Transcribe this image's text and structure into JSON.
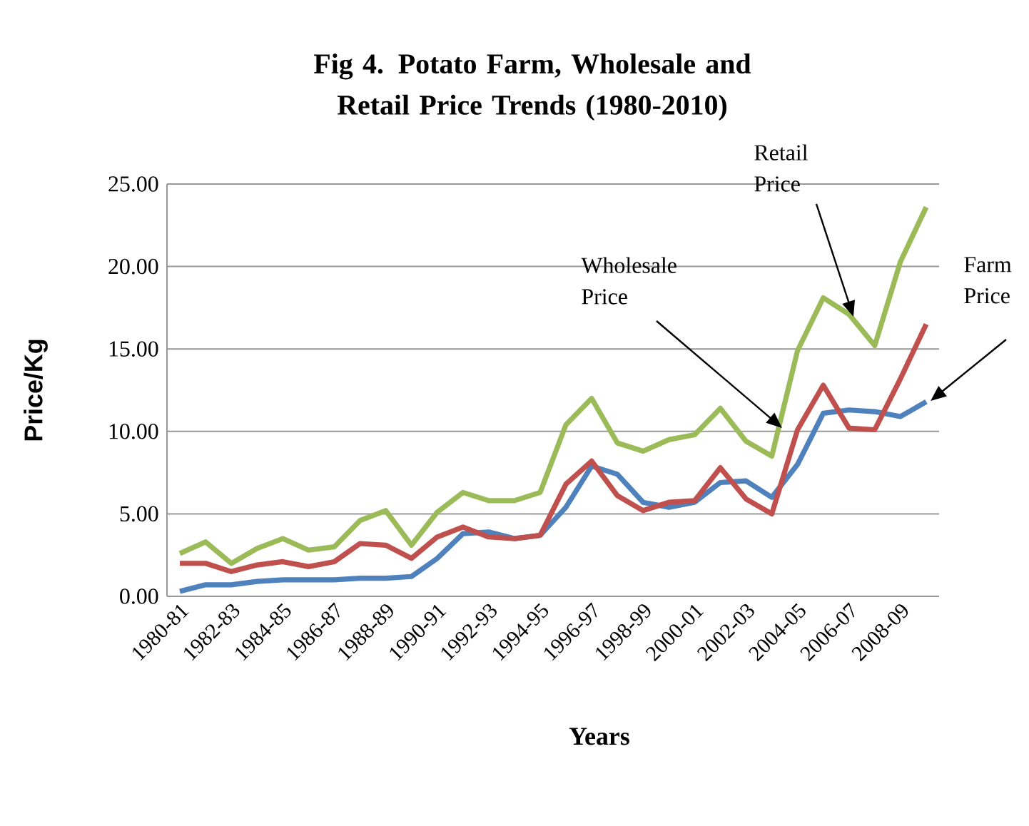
{
  "chart_data": {
    "type": "line",
    "title": "Fig 4. Potato Farm, Wholesale and Retail Price Trends (1980-2010)",
    "xlabel": "Years",
    "ylabel": "Price/Kg",
    "categories": [
      "1980-81",
      null,
      "1982-83",
      null,
      "1984-85",
      null,
      "1986-87",
      null,
      "1988-89",
      null,
      "1990-91",
      null,
      "1992-93",
      null,
      "1994-95",
      null,
      "1996-97",
      null,
      "1998-99",
      null,
      "2000-01",
      null,
      "2002-03",
      null,
      "2004-05",
      null,
      "2006-07",
      null,
      "2008-09",
      null
    ],
    "series": [
      {
        "color": "#4f81bd",
        "values": [
          0.3,
          0.7,
          0.7,
          0.9,
          1.0,
          1.0,
          1.0,
          1.1,
          1.1,
          1.2,
          2.3,
          3.8,
          3.9,
          3.5,
          3.7,
          5.4,
          7.9,
          7.4,
          5.7,
          5.4,
          5.7,
          6.9,
          7.0,
          6.0,
          8.0,
          11.1,
          11.3,
          11.2,
          10.9,
          11.8
        ]
      },
      {
        "color": "#c0504d",
        "values": [
          2.0,
          2.0,
          1.5,
          1.9,
          2.1,
          1.8,
          2.1,
          3.2,
          3.1,
          2.3,
          3.6,
          4.2,
          3.6,
          3.5,
          3.7,
          6.8,
          8.2,
          6.1,
          5.2,
          5.7,
          5.8,
          7.8,
          5.9,
          5.0,
          10.1,
          12.8,
          10.2,
          10.1,
          13.2,
          16.5
        ]
      },
      {
        "color": "#9bbb59",
        "values": [
          2.6,
          3.3,
          2.0,
          2.9,
          3.5,
          2.8,
          3.0,
          4.6,
          5.2,
          3.1,
          5.1,
          6.3,
          5.8,
          5.8,
          6.3,
          10.4,
          12.0,
          9.3,
          8.8,
          9.5,
          9.8,
          11.4,
          9.4,
          8.5,
          14.9,
          18.1,
          17.1,
          15.2,
          20.3,
          23.6
        ]
      }
    ],
    "ylim": [
      0,
      25
    ],
    "yticks": [
      {
        "value": 0,
        "label": "0.00"
      },
      {
        "value": 5,
        "label": "5.00"
      },
      {
        "value": 10,
        "label": "10.00"
      },
      {
        "value": 15,
        "label": "15.00"
      },
      {
        "value": 20,
        "label": "20.00"
      },
      {
        "value": 25,
        "label": "25.00"
      }
    ],
    "grid": "y",
    "marker": "none",
    "line_style": "solid",
    "annotations": [
      "Retail Price",
      "Wholesale Price",
      "Farm Price"
    ]
  }
}
